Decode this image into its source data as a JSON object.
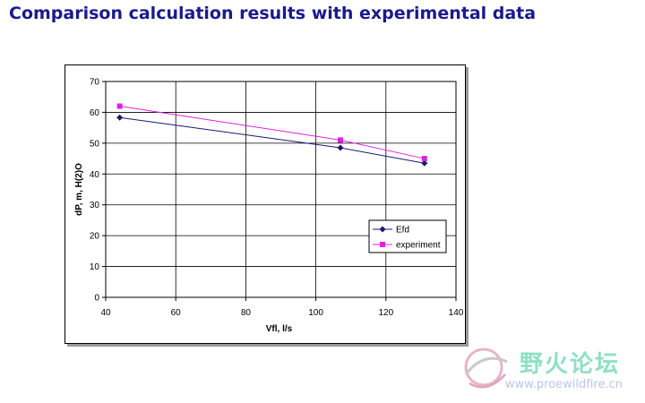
{
  "header": {
    "title": "Comparison calculation results with experimental data"
  },
  "chart_data": {
    "type": "line",
    "xlabel": "Vfl, l/s",
    "ylabel": "dP, m, H(2)O",
    "xlim": [
      40,
      140
    ],
    "ylim": [
      0,
      70
    ],
    "xticks": [
      40,
      60,
      80,
      100,
      120,
      140
    ],
    "yticks": [
      0,
      10,
      20,
      30,
      40,
      50,
      60,
      70
    ],
    "grid": true,
    "legend_position": "lower-right",
    "series": [
      {
        "name": "Efd",
        "color": "#1a1a6e",
        "marker": "diamond",
        "x": [
          44,
          107,
          131
        ],
        "y": [
          58.3,
          48.5,
          43.5
        ]
      },
      {
        "name": "experiment",
        "color": "#e020e0",
        "marker": "square",
        "x": [
          44,
          107,
          131
        ],
        "y": [
          62,
          51,
          45
        ]
      }
    ]
  },
  "watermark": {
    "text_cn": "野火论坛",
    "url": "www.proewildfire.cn"
  }
}
